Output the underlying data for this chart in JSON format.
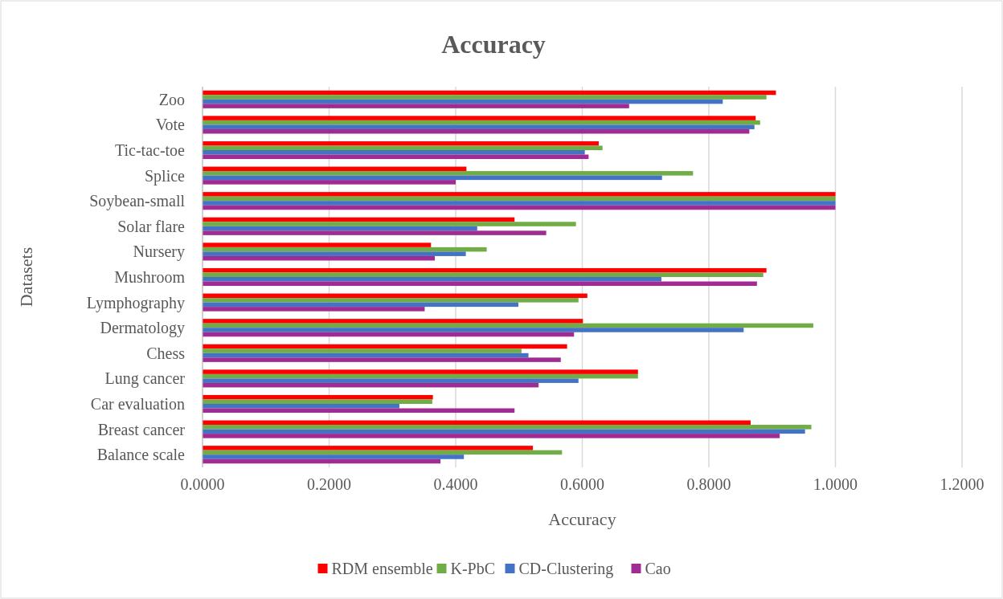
{
  "chart_data": {
    "type": "bar",
    "orientation": "horizontal",
    "title": "Accuracy",
    "xlabel": "Accuracy",
    "ylabel": "Datasets",
    "categories": [
      "Zoo",
      "Vote",
      "Tic-tac-toe",
      "Splice",
      "Soybean-small",
      "Solar flare",
      "Nursery",
      "Mushroom",
      "Lymphography",
      "Dermatology",
      "Chess",
      "Lung cancer",
      "Car evaluation",
      "Breast cancer",
      "Balance scale"
    ],
    "series": [
      {
        "name": "RDM ensemble",
        "color": "#ff0000",
        "values": [
          0.906,
          0.874,
          0.626,
          0.417,
          1.0,
          0.493,
          0.361,
          0.891,
          0.608,
          0.601,
          0.576,
          0.688,
          0.364,
          0.866,
          0.522
        ]
      },
      {
        "name": "K-PbC",
        "color": "#70ad47",
        "values": [
          0.891,
          0.881,
          0.632,
          0.775,
          1.0,
          0.59,
          0.449,
          0.886,
          0.594,
          0.965,
          0.504,
          0.688,
          0.363,
          0.962,
          0.568
        ]
      },
      {
        "name": "CD-Clustering",
        "color": "#4472c4",
        "values": [
          0.822,
          0.872,
          0.604,
          0.726,
          1.0,
          0.434,
          0.416,
          0.725,
          0.499,
          0.855,
          0.515,
          0.594,
          0.311,
          0.952,
          0.413
        ]
      },
      {
        "name": "Cao",
        "color": "#a02b93",
        "values": [
          0.674,
          0.864,
          0.61,
          0.4,
          1.0,
          0.543,
          0.367,
          0.876,
          0.351,
          0.587,
          0.566,
          0.531,
          0.493,
          0.912,
          0.376
        ]
      }
    ],
    "xlim": [
      0,
      1.2
    ],
    "xticks": [
      {
        "value": 0,
        "label": "0.0000"
      },
      {
        "value": 0.2,
        "label": "0.2000"
      },
      {
        "value": 0.4,
        "label": "0.4000"
      },
      {
        "value": 0.6,
        "label": "0.6000"
      },
      {
        "value": 0.8,
        "label": "0.8000"
      },
      {
        "value": 1.0,
        "label": "1.0000"
      },
      {
        "value": 1.2,
        "label": "1.2000"
      }
    ],
    "grid": "x",
    "legend": "bottom"
  }
}
